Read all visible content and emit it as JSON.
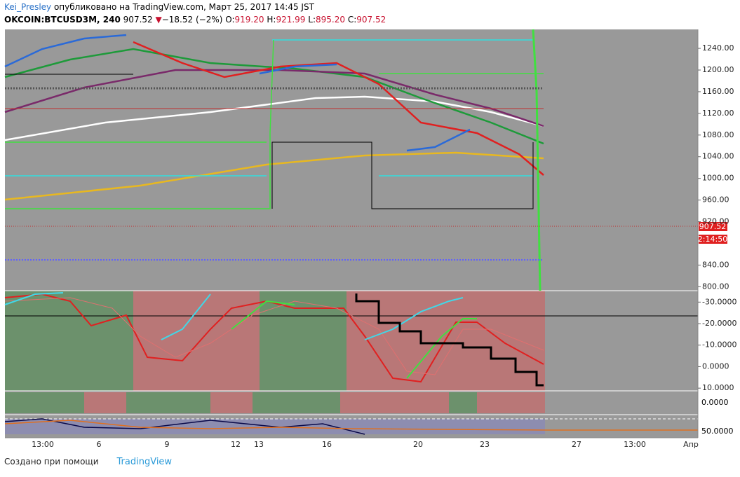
{
  "header": {
    "author": "Kei_Presley",
    "published": "опубликовано на TradingView.com, Март 25, 2017 14:45 JST",
    "symbol": "OKCOIN:BTCUSD3M, 240",
    "last": "907.52",
    "arrow": "▼",
    "change": "−18.52 (−2%)",
    "o_label": "O:",
    "open": "919.20",
    "h_label": "H:",
    "high": "921.99",
    "l_label": "L:",
    "low": "895.20",
    "c_label": "C:",
    "close": "907.52"
  },
  "price_axis": {
    "ylim": [
      775,
      1275
    ],
    "ticks": [
      {
        "value": 800,
        "label": "800.00"
      },
      {
        "value": 840,
        "label": "840.00"
      },
      {
        "value": 920,
        "label": "920.00"
      },
      {
        "value": 960,
        "label": "960.00"
      },
      {
        "value": 1000,
        "label": "1000.00"
      },
      {
        "value": 1040,
        "label": "1040.00"
      },
      {
        "value": 1080,
        "label": "1080.00"
      },
      {
        "value": 1120,
        "label": "1120.00"
      },
      {
        "value": 1160,
        "label": "1160.00"
      },
      {
        "value": 1200,
        "label": "1200.00"
      },
      {
        "value": 1240,
        "label": "1240.00"
      }
    ],
    "last_label": "907.52",
    "timer": "2:14:50"
  },
  "osc_axis": {
    "ylim": [
      11.25,
      -35.31
    ],
    "ticks": [
      {
        "value": 10,
        "label": "10.0000"
      },
      {
        "value": 0,
        "label": "0.0000"
      },
      {
        "value": -10,
        "label": "-10.0000"
      },
      {
        "value": -20,
        "label": "-20.0000"
      },
      {
        "value": -30,
        "label": "-30.0000"
      }
    ]
  },
  "osc2_axis": {
    "label": "0.0000"
  },
  "osc3_axis": {
    "label": "50.0000"
  },
  "time_axis": [
    "13:00",
    "6",
    "9",
    "12",
    "13",
    "16",
    "20",
    "23",
    "27",
    "13:00",
    "Апр"
  ],
  "footer": {
    "made_with": "Создано при помощи",
    "brand": "TradingView"
  }
}
